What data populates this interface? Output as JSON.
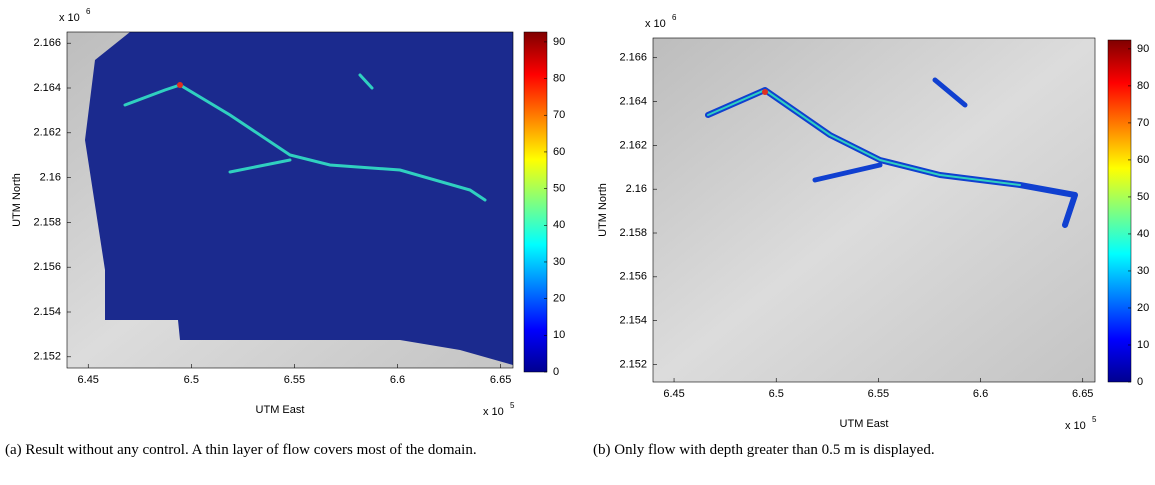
{
  "panels": [
    {
      "x_axis": {
        "label": "UTM East",
        "ticks": [
          6.45,
          6.5,
          6.55,
          6.6,
          6.65
        ],
        "lim": [
          6.4397,
          6.656
        ],
        "multiplier": "x 10",
        "exponent": "5"
      },
      "y_axis": {
        "label": "UTM North",
        "ticks": [
          2.152,
          2.154,
          2.156,
          2.158,
          2.16,
          2.162,
          2.164,
          2.166
        ],
        "lim": [
          2.1515,
          2.1665
        ],
        "multiplier": "x 10",
        "exponent": "6"
      },
      "colorbar": {
        "ticks": [
          0,
          10,
          20,
          30,
          40,
          50,
          60,
          70,
          80,
          90
        ],
        "lim": [
          0,
          92.7
        ]
      },
      "caption": "(a) Result without any control. A thin layer of flow covers most of the domain."
    },
    {
      "x_axis": {
        "label": "UTM East",
        "ticks": [
          6.45,
          6.5,
          6.55,
          6.6,
          6.65
        ],
        "lim": [
          6.4397,
          6.656
        ],
        "multiplier": "x 10",
        "exponent": "5"
      },
      "y_axis": {
        "label": "UTM North",
        "ticks": [
          2.152,
          2.154,
          2.156,
          2.158,
          2.16,
          2.162,
          2.164,
          2.166
        ],
        "lim": [
          2.1512,
          2.1669
        ],
        "multiplier": "x 10",
        "exponent": "6"
      },
      "colorbar": {
        "ticks": [
          0,
          10,
          20,
          30,
          40,
          50,
          60,
          70,
          80,
          90
        ],
        "lim": [
          0,
          92.4
        ]
      },
      "caption": "(b) Only flow with depth greater than 0.5 m is displayed."
    }
  ]
}
